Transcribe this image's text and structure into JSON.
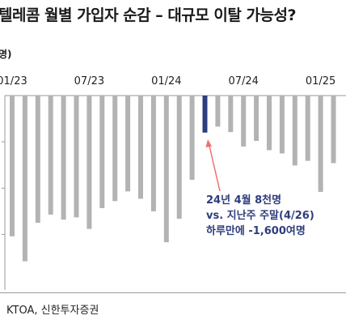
{
  "title": "텔레콤 월별 가입자 순감 – 대규모 이탈 가능성?",
  "unit_label": "명)",
  "source": "KTOA, 신한투자증권",
  "annotation": {
    "line1": "24년 4월 8천명",
    "line2": "vs. 지난주 주말(4/26)",
    "line3": "하루만에 -1,600여명"
  },
  "colors": {
    "bar": "#b3b3b3",
    "highlight": "#2e3d7c",
    "arrow": "#f07070",
    "annotation_text": "#2e3d7c"
  },
  "chart_data": {
    "type": "bar",
    "title": "텔레콤 월별 가입자 순감 – 대규모 이탈 가능성?",
    "ylabel": "명)",
    "x_tick_labels": [
      "01/23",
      "07/23",
      "01/24",
      "07/24",
      "01/25"
    ],
    "highlight": "04/24",
    "categories": [
      "01/23",
      "02/23",
      "03/23",
      "04/23",
      "05/23",
      "06/23",
      "07/23",
      "08/23",
      "09/23",
      "10/23",
      "11/23",
      "12/23",
      "01/24",
      "02/24",
      "03/24",
      "04/24",
      "05/24",
      "06/24",
      "07/24",
      "08/24",
      "09/24",
      "10/24",
      "11/24",
      "12/24",
      "01/25",
      "02/25"
    ],
    "values": [
      -30400,
      -35800,
      -27500,
      -25700,
      -26800,
      -26300,
      -28800,
      -24300,
      -22800,
      -20700,
      -22300,
      -25000,
      -31700,
      -26600,
      -18200,
      -8000,
      -6700,
      -7900,
      -11000,
      -9800,
      -11800,
      -12500,
      -15100,
      -14100,
      -20800,
      -14600
    ],
    "ylim": [
      -42000,
      0
    ]
  }
}
